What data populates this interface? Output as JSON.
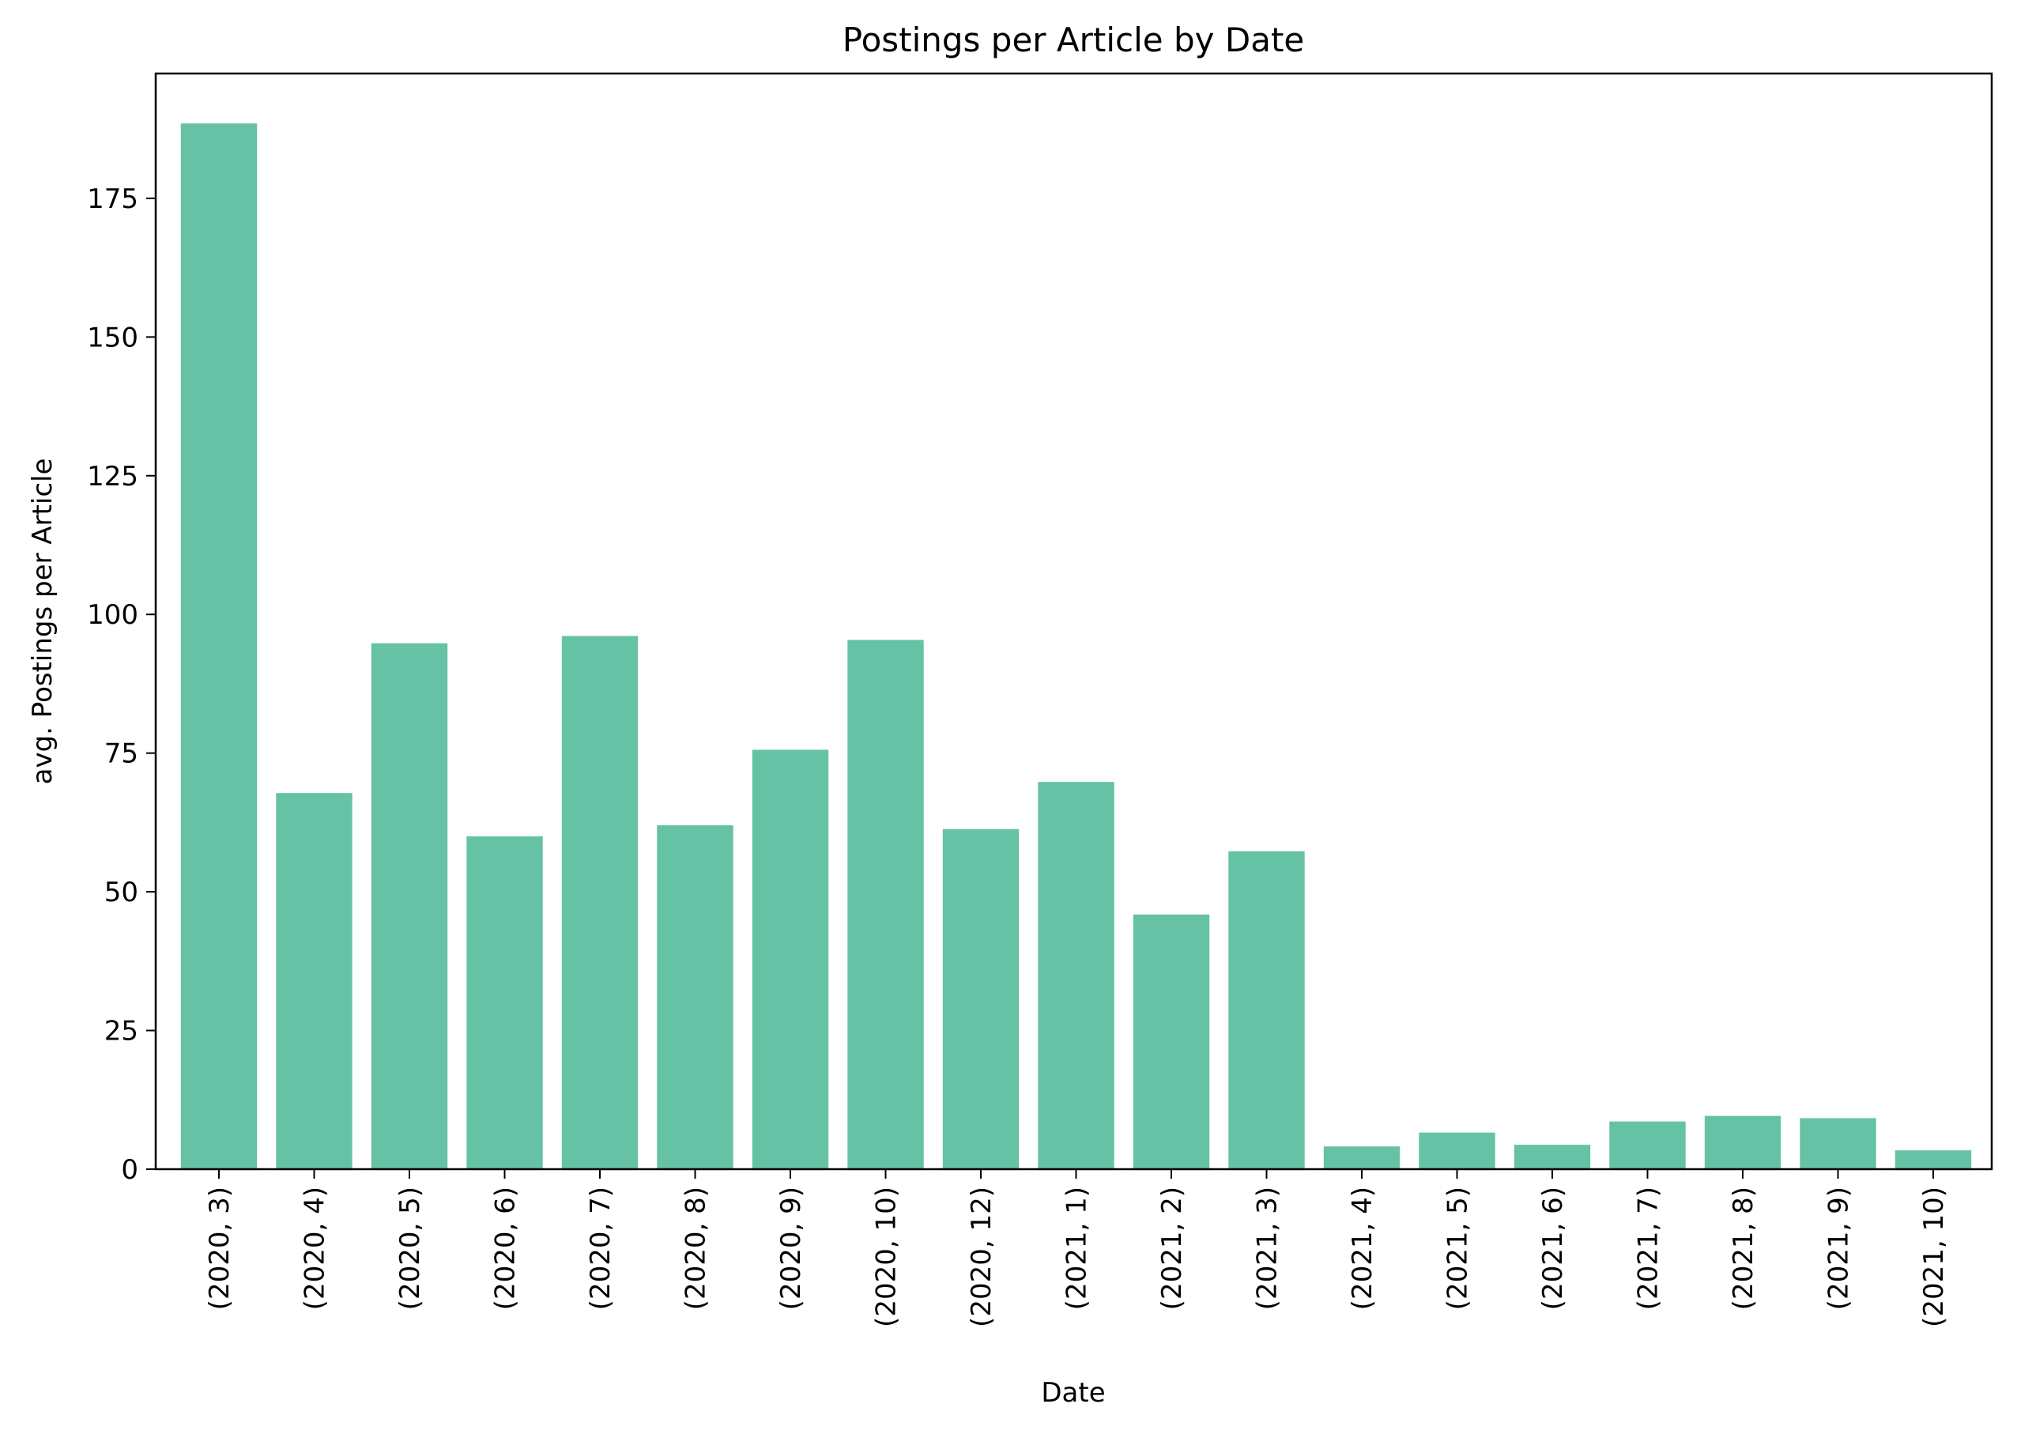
{
  "chart_data": {
    "type": "bar",
    "title": "Postings per Article by Date",
    "xlabel": "Date",
    "ylabel": "avg. Postings per Article",
    "categories": [
      "(2020, 3)",
      "(2020, 4)",
      "(2020, 5)",
      "(2020, 6)",
      "(2020, 7)",
      "(2020, 8)",
      "(2020, 9)",
      "(2020, 10)",
      "(2020, 12)",
      "(2021, 1)",
      "(2021, 2)",
      "(2021, 3)",
      "(2021, 4)",
      "(2021, 5)",
      "(2021, 6)",
      "(2021, 7)",
      "(2021, 8)",
      "(2021, 9)",
      "(2021, 10)"
    ],
    "values": [
      188.5,
      67.8,
      94.8,
      60.0,
      96.1,
      62.0,
      75.6,
      95.4,
      61.3,
      69.8,
      45.9,
      57.3,
      4.1,
      6.6,
      4.4,
      8.6,
      9.6,
      9.2,
      3.4
    ],
    "ylim": [
      0,
      197.5
    ],
    "yticks": [
      0,
      25,
      50,
      75,
      100,
      125,
      150,
      175
    ],
    "bar_color": "#66c2a5",
    "grid": false,
    "legend": "none"
  }
}
